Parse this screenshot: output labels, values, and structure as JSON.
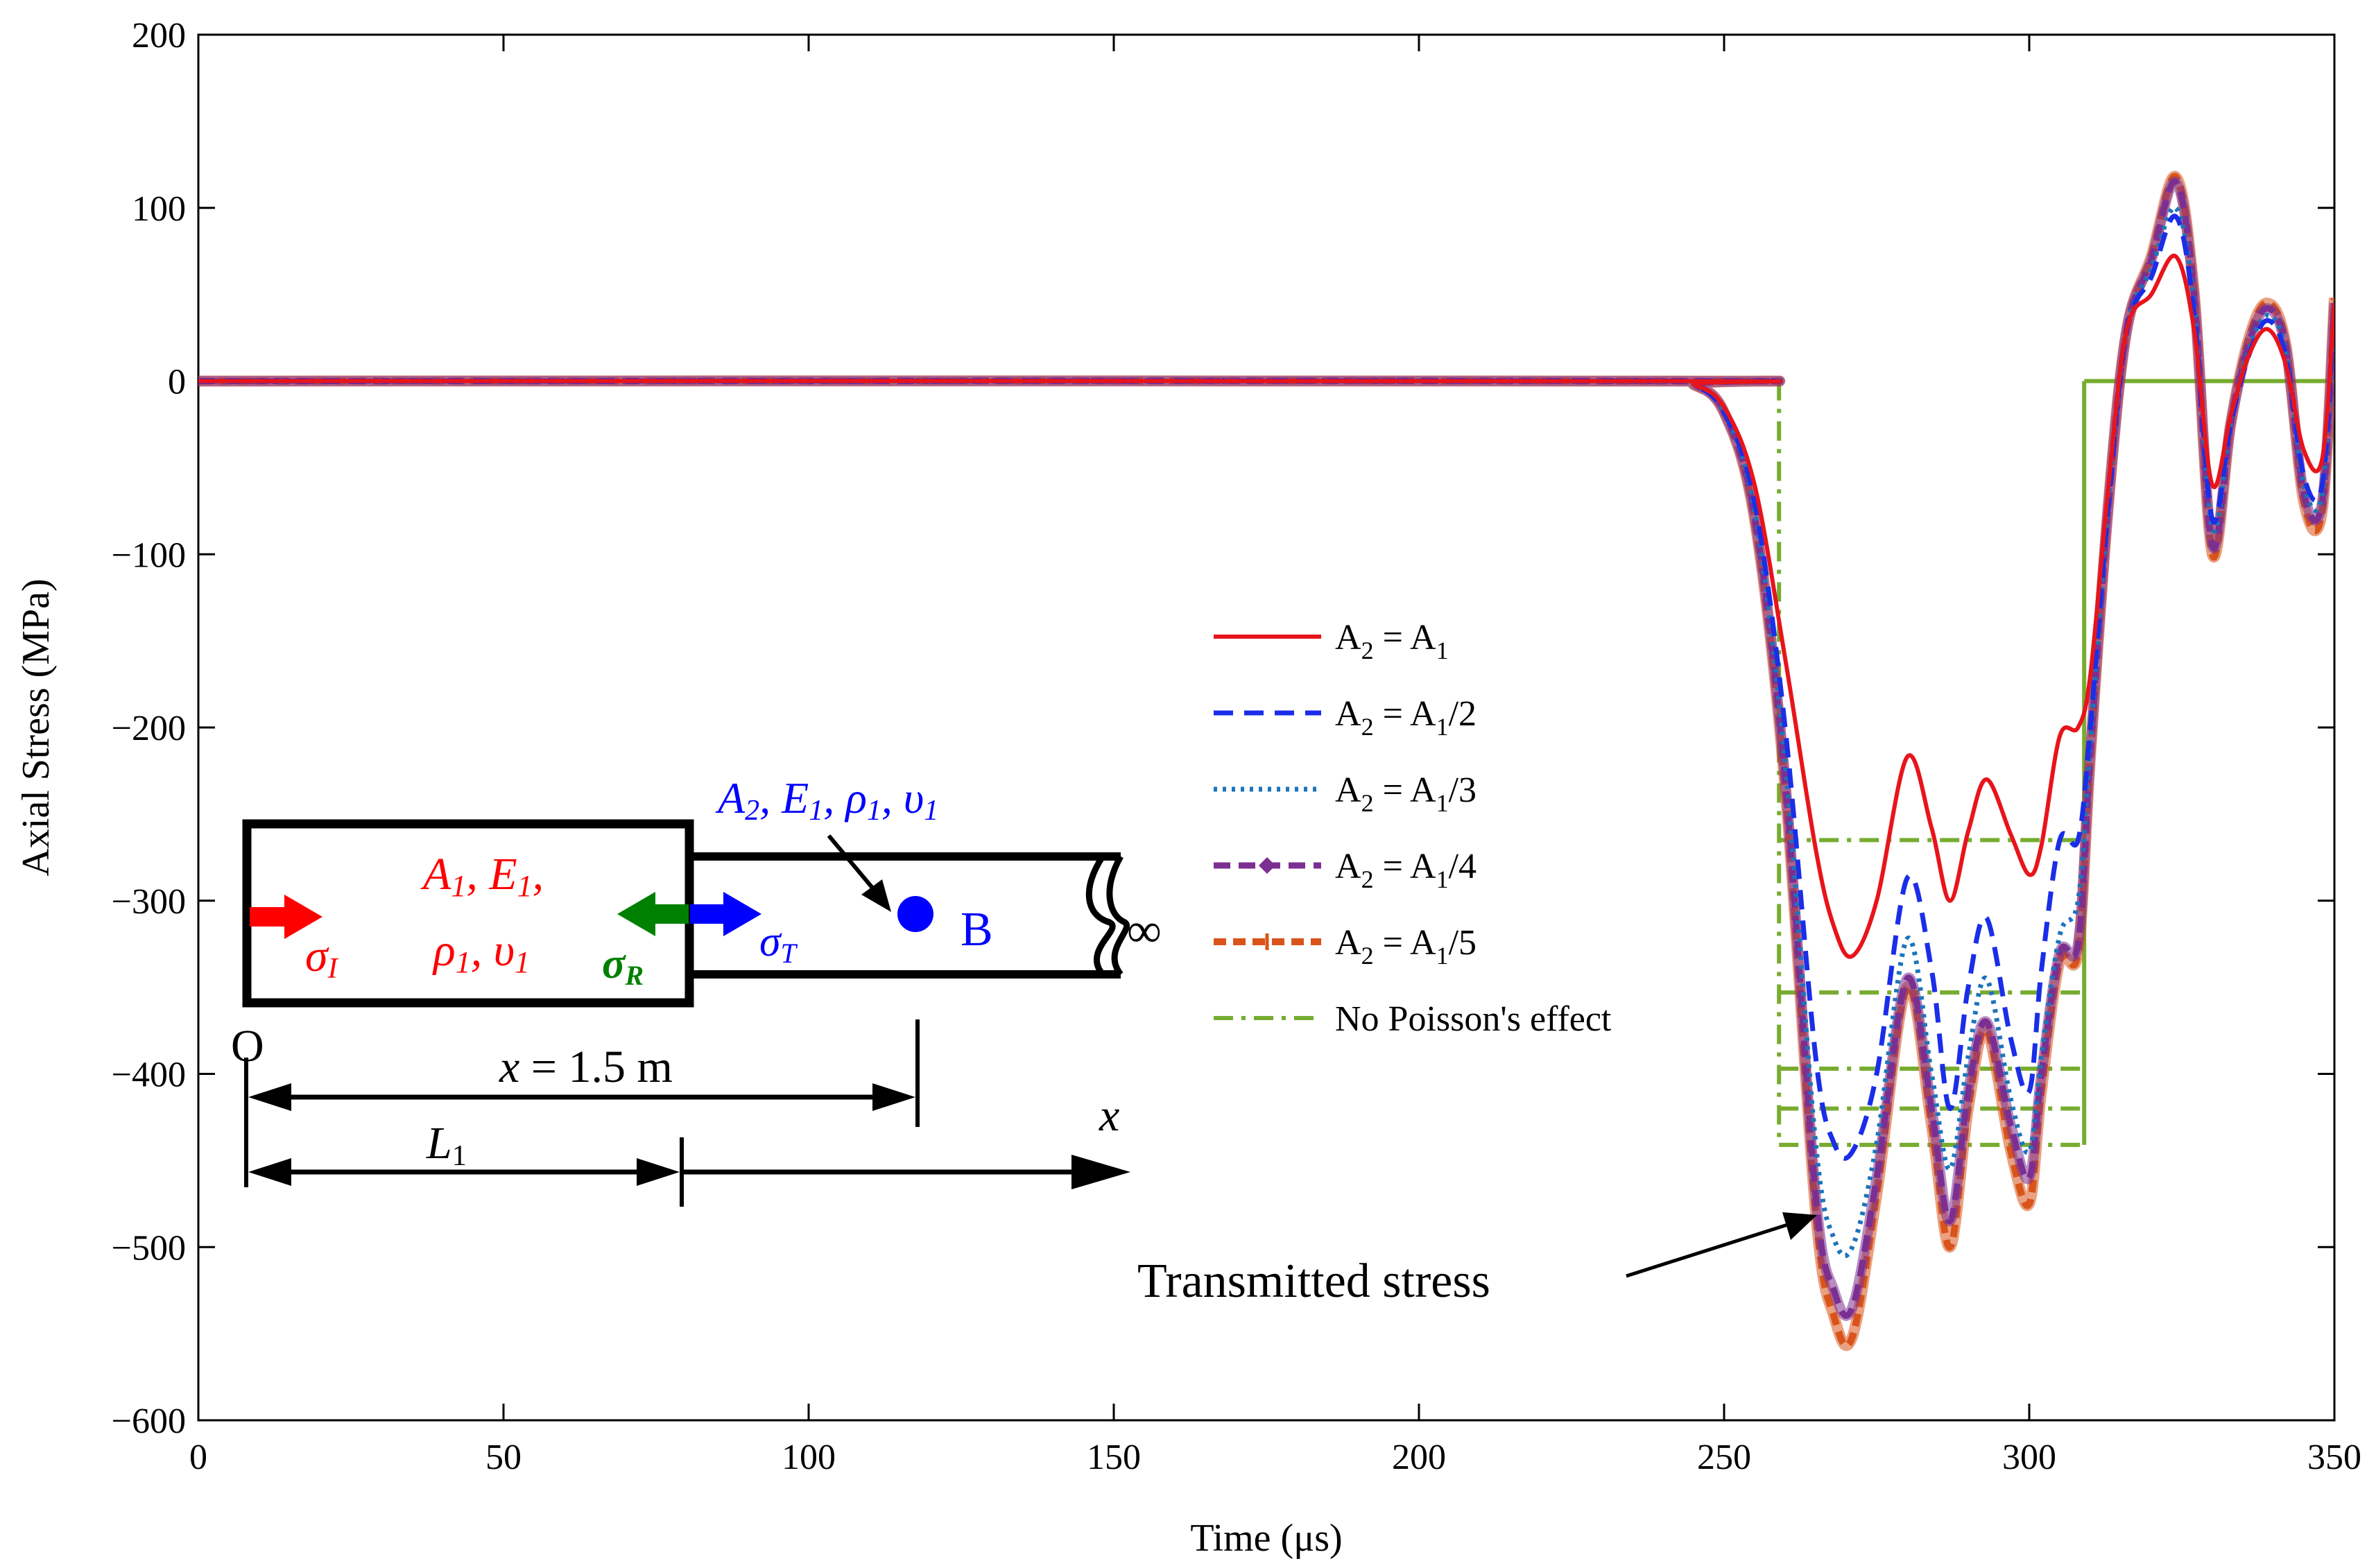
{
  "chart_data": {
    "type": "line",
    "xlabel": "Time (μs)",
    "ylabel": "Axial Stress (MPa)",
    "xlim": [
      0,
      350
    ],
    "ylim": [
      -600,
      200
    ],
    "xticks": [
      0,
      50,
      100,
      150,
      200,
      250,
      300,
      350
    ],
    "yticks": [
      200,
      100,
      0,
      -100,
      -200,
      -300,
      -400,
      -500,
      -600
    ],
    "xtick_labels": [
      "0",
      "50",
      "100",
      "150",
      "200",
      "250",
      "300",
      "350"
    ],
    "ytick_labels": [
      "200",
      "100",
      "0",
      "−100",
      "−200",
      "−300",
      "−400",
      "−500",
      "−600"
    ],
    "grid": false,
    "legend_position": "center-right",
    "series": [
      {
        "name": "A2 = A1",
        "legend": {
          "main": "A",
          "sub1": "2",
          "mid": " = A",
          "sub2": "1",
          "tail": ""
        },
        "color": "#e8141b",
        "style": "solid",
        "x": [
          0,
          240,
          245,
          250,
          255,
          260,
          265,
          268,
          271,
          275,
          280,
          284,
          287,
          290,
          293,
          297,
          300,
          302,
          305,
          308,
          310,
          313,
          316,
          320,
          324,
          327,
          330,
          333,
          336,
          339,
          342,
          345,
          348,
          350
        ],
        "y": [
          0,
          0,
          -2,
          -15,
          -60,
          -160,
          -270,
          -315,
          -332,
          -300,
          -217,
          -258,
          -300,
          -260,
          -230,
          -262,
          -285,
          -268,
          -205,
          -200,
          -170,
          -60,
          30,
          50,
          72,
          30,
          -60,
          -20,
          15,
          30,
          10,
          -40,
          -45,
          45
        ]
      },
      {
        "name": "A2 = A1/2",
        "legend": {
          "main": "A",
          "sub1": "2",
          "mid": " = A",
          "sub2": "1",
          "tail": "/2"
        },
        "color": "#1a2ee8",
        "style": "dash",
        "x": [
          0,
          240,
          245,
          250,
          255,
          260,
          265,
          268,
          271,
          275,
          280,
          284,
          287,
          290,
          293,
          297,
          300,
          302,
          305,
          308,
          310,
          313,
          316,
          320,
          324,
          327,
          330,
          333,
          336,
          339,
          342,
          345,
          348,
          350
        ],
        "y": [
          0,
          0,
          -2,
          -18,
          -70,
          -200,
          -390,
          -440,
          -445,
          -400,
          -287,
          -340,
          -420,
          -350,
          -310,
          -380,
          -410,
          -340,
          -265,
          -265,
          -200,
          -70,
          30,
          60,
          95,
          40,
          -80,
          -25,
          15,
          35,
          15,
          -55,
          -60,
          45
        ]
      },
      {
        "name": "A2 = A1/3",
        "legend": {
          "main": "A",
          "sub1": "2",
          "mid": " = A",
          "sub2": "1",
          "tail": "/3"
        },
        "color": "#1c74bc",
        "style": "dot",
        "x": [
          0,
          240,
          245,
          250,
          255,
          260,
          265,
          268,
          271,
          275,
          280,
          284,
          287,
          290,
          293,
          297,
          300,
          302,
          305,
          308,
          310,
          313,
          316,
          320,
          324,
          327,
          330,
          333,
          336,
          339,
          342,
          345,
          348,
          350
        ],
        "y": [
          0,
          0,
          -2,
          -18,
          -75,
          -220,
          -440,
          -495,
          -500,
          -440,
          -322,
          -400,
          -455,
          -390,
          -345,
          -415,
          -445,
          -390,
          -320,
          -300,
          -210,
          -70,
          30,
          65,
          100,
          45,
          -85,
          -25,
          18,
          38,
          18,
          -60,
          -65,
          45
        ]
      },
      {
        "name": "A2 = A1/4",
        "legend": {
          "main": "A",
          "sub1": "2",
          "mid": " = A",
          "sub2": "1",
          "tail": "/4"
        },
        "color": "#7b2f91",
        "style": "dashdotmarker",
        "x": [
          0,
          240,
          245,
          250,
          255,
          260,
          265,
          268,
          271,
          275,
          280,
          284,
          287,
          290,
          293,
          297,
          300,
          302,
          305,
          308,
          310,
          313,
          316,
          320,
          324,
          327,
          330,
          333,
          336,
          339,
          342,
          345,
          348,
          350
        ],
        "y": [
          0,
          0,
          -2,
          -18,
          -78,
          -230,
          -470,
          -525,
          -535,
          -460,
          -345,
          -420,
          -485,
          -410,
          -370,
          -430,
          -460,
          -400,
          -330,
          -325,
          -215,
          -70,
          30,
          70,
          115,
          50,
          -95,
          -25,
          22,
          42,
          20,
          -65,
          -70,
          45
        ]
      },
      {
        "name": "A2 = A1/5",
        "legend": {
          "main": "A",
          "sub1": "2",
          "mid": " = A",
          "sub2": "1",
          "tail": "/5"
        },
        "color": "#d9541a",
        "style": "dashplus",
        "x": [
          0,
          240,
          245,
          250,
          255,
          260,
          265,
          268,
          271,
          275,
          280,
          284,
          287,
          290,
          293,
          297,
          300,
          302,
          305,
          308,
          310,
          313,
          316,
          320,
          324,
          327,
          330,
          333,
          336,
          339,
          342,
          345,
          348,
          350
        ],
        "y": [
          0,
          0,
          -2,
          -18,
          -80,
          -235,
          -480,
          -540,
          -552,
          -470,
          -350,
          -430,
          -500,
          -420,
          -375,
          -445,
          -475,
          -410,
          -335,
          -330,
          -218,
          -70,
          30,
          72,
          118,
          52,
          -100,
          -25,
          25,
          45,
          22,
          -70,
          -75,
          48
        ]
      },
      {
        "name": "No Poisson's effect",
        "legend": {
          "main": "No Poisson's effect",
          "sub1": "",
          "mid": "",
          "sub2": "",
          "tail": ""
        },
        "color": "#77ac30",
        "style": "dashdot",
        "levels": [
          -265,
          -353,
          -397,
          -420,
          -441
        ],
        "step_start": 259,
        "step_end": 309
      }
    ],
    "annotations": {
      "transmitted_label": "Transmitted stress",
      "transmitted_point": [
        266,
        -480
      ]
    }
  },
  "diagram": {
    "bar1_label_line1": "A",
    "bar1_sub_a": "1",
    "bar1_e": ", E",
    "bar1_sub_e": "1",
    "bar1_tail": ",",
    "bar1_rho": "ρ",
    "bar1_sub_rho": "1",
    "bar1_nu": ", υ",
    "bar1_sub_nu": "1",
    "bar2_label": {
      "a": "A",
      "a_sub": "2",
      "e": ", E",
      "e_sub": "1",
      "rho": ", ρ",
      "rho_sub": "1",
      "nu": ", υ",
      "nu_sub": "1"
    },
    "sigma_i": "σ",
    "sigma_i_sub": "I",
    "sigma_r": "σ",
    "sigma_r_sub": "R",
    "sigma_t": "σ",
    "sigma_t_sub": "T",
    "point_label": "B",
    "origin_label": "O",
    "infinity": "∞",
    "x_dim_label": "x = 1.5 m",
    "x_dim_x": "x",
    "x_dim_value": " = 1.5 m",
    "l1_label": "L",
    "l1_sub": "1",
    "x_axis_label": "x",
    "colors": {
      "incident": "#ff0000",
      "reflected": "#008000",
      "transmitted": "#0000ff"
    }
  }
}
